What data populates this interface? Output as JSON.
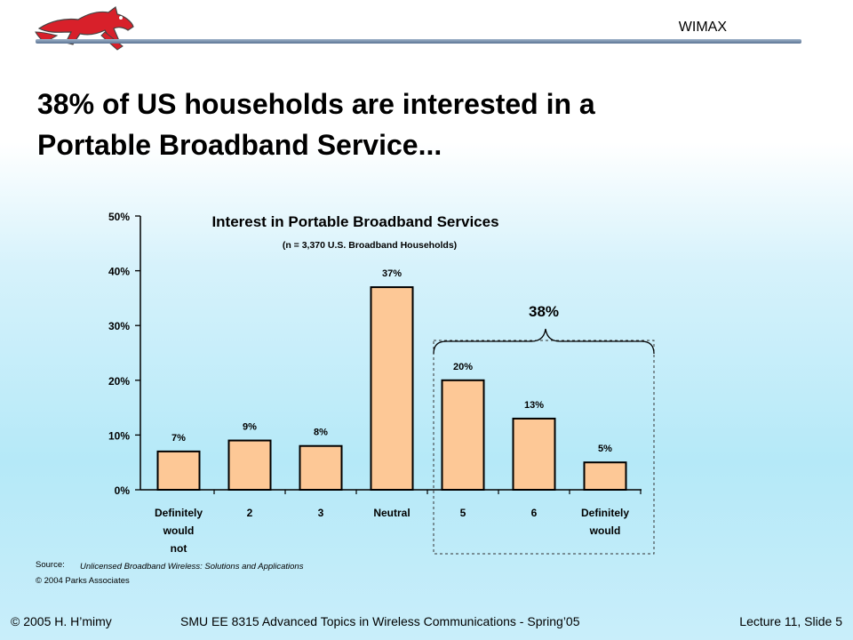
{
  "header": {
    "label": "WIMAX"
  },
  "title": {
    "line1": "38% of US households are interested in a",
    "line2": "Portable Broadband Service..."
  },
  "chart_data": {
    "type": "bar",
    "title": "Interest in Portable Broadband Services",
    "subtitle": "(n = 3,370 U.S. Broadband Households)",
    "categories": [
      [
        "Definitely",
        "would",
        "not"
      ],
      [
        "2"
      ],
      [
        "3"
      ],
      [
        "Neutral"
      ],
      [
        "5"
      ],
      [
        "6"
      ],
      [
        "Definitely",
        "would"
      ]
    ],
    "values": [
      7,
      9,
      8,
      37,
      20,
      13,
      5
    ],
    "value_labels": [
      "7%",
      "9%",
      "8%",
      "37%",
      "20%",
      "13%",
      "5%"
    ],
    "yticks": [
      "0%",
      "10%",
      "20%",
      "30%",
      "40%",
      "50%"
    ],
    "ylim": [
      0,
      50
    ],
    "bar_color": "#fdc896",
    "bracket_label": "38%",
    "bracket_groups": [
      4,
      5,
      6
    ]
  },
  "source": {
    "label": "Source:",
    "text": "Unlicensed Broadband Wireless: Solutions and Applications",
    "copyright": "© 2004 Parks Associates"
  },
  "footer": {
    "left": "© 2005 H. H’mimy",
    "center": "SMU EE 8315 Advanced Topics in Wireless Communications - Spring’05",
    "right": "Lecture 11, Slide 5"
  }
}
